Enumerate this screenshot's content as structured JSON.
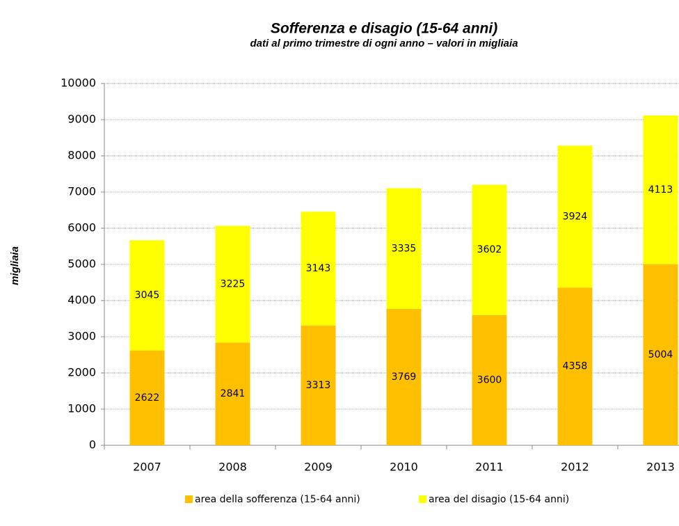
{
  "chart_data": {
    "type": "stacked_bar",
    "title": "Sofferenza e disagio (15-64 anni)",
    "subtitle": "dati al primo trimestre di ogni anno – valori in migliaia",
    "y_label": "migliaia",
    "categories": [
      "2007",
      "2008",
      "2009",
      "2010",
      "2011",
      "2012",
      "2013"
    ],
    "series": [
      {
        "name": "area della sofferenza (15-64 anni)",
        "color": "#FFC000",
        "values": [
          2622,
          2841,
          3313,
          3769,
          3600,
          4358,
          5004
        ]
      },
      {
        "name": "area del disagio (15-64 anni)",
        "color": "#FFFF00",
        "values": [
          3045,
          3225,
          3143,
          3335,
          3602,
          3924,
          4113
        ]
      }
    ],
    "ylim": [
      0,
      10000
    ],
    "yticks": [
      0,
      1000,
      2000,
      3000,
      4000,
      5000,
      6000,
      7000,
      8000,
      9000,
      10000
    ],
    "grid": true,
    "legend": "bottom"
  }
}
